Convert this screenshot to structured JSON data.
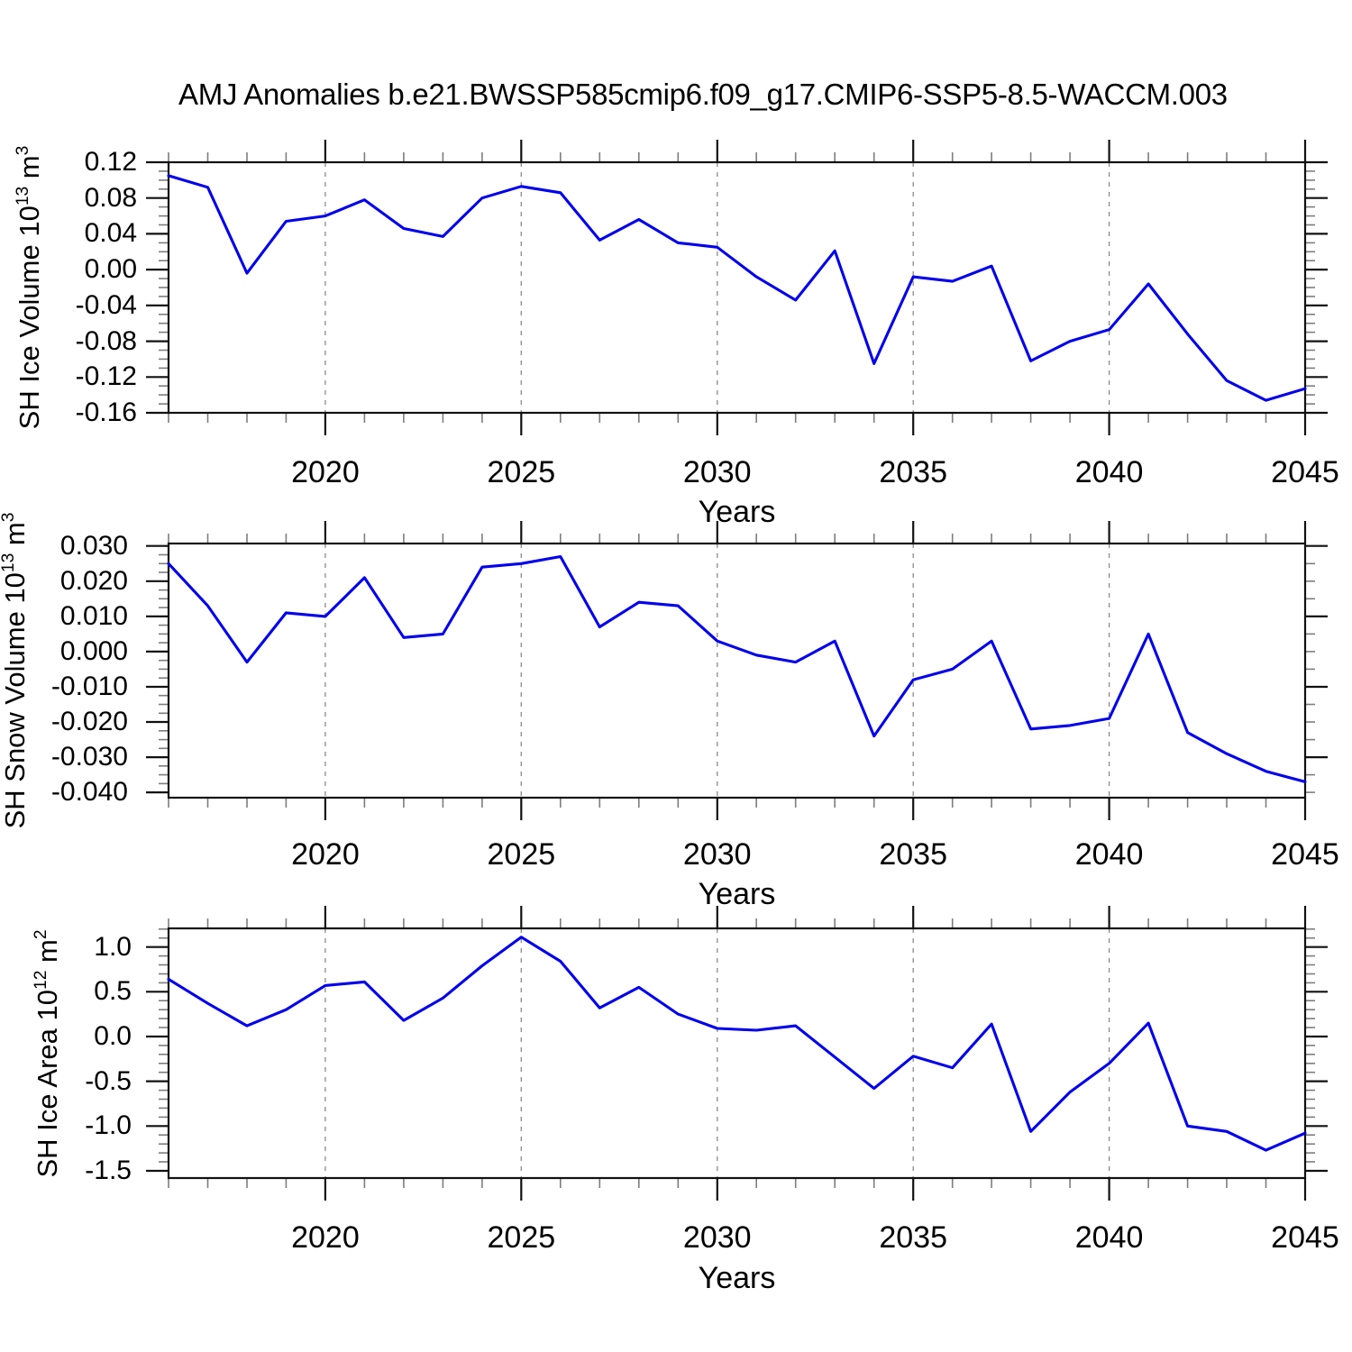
{
  "title": "AMJ Anomalies b.e21.BWSSP585cmip6.f09_g17.CMIP6-SSP5-8.5-WACCM.003",
  "colors": {
    "line": "#0000EE",
    "grid": "#8a8a8a",
    "frame": "#111111",
    "tick_major": "#111111",
    "tick_minor": "#7d7d7d"
  },
  "chart_data": [
    {
      "type": "line",
      "name": "sh-ice-volume",
      "ylabel_parts": [
        "SH Ice Volume 10",
        "13",
        " m",
        "3"
      ],
      "xlabel": "Years",
      "xlim": [
        2016,
        2045
      ],
      "xticks_major": [
        2020,
        2025,
        2030,
        2035,
        2040,
        2045
      ],
      "grid_years": [
        2020,
        2025,
        2030,
        2035,
        2040
      ],
      "ylim": [
        -0.16,
        0.12
      ],
      "ytick_values": [
        0.12,
        0.08,
        0.04,
        0.0,
        -0.04,
        -0.08,
        -0.12,
        -0.16
      ],
      "ytick_labels": [
        "0.12",
        "0.08",
        "0.04",
        "0.00",
        "-0.04",
        "-0.08",
        "-0.12",
        "-0.16"
      ],
      "ytick_minor_step": 0.01,
      "x": [
        2016,
        2017,
        2018,
        2019,
        2020,
        2021,
        2022,
        2023,
        2024,
        2025,
        2026,
        2027,
        2028,
        2029,
        2030,
        2031,
        2032,
        2033,
        2034,
        2035,
        2036,
        2037,
        2038,
        2039,
        2040,
        2041,
        2042,
        2043,
        2044,
        2045
      ],
      "values": [
        0.105,
        0.092,
        -0.004,
        0.054,
        0.06,
        0.078,
        0.046,
        0.037,
        0.08,
        0.093,
        0.086,
        0.033,
        0.056,
        0.03,
        0.025,
        -0.008,
        -0.034,
        0.021,
        -0.105,
        -0.008,
        -0.013,
        0.004,
        -0.102,
        -0.08,
        -0.067,
        -0.016,
        -0.072,
        -0.124,
        -0.146,
        -0.133
      ]
    },
    {
      "type": "line",
      "name": "sh-snow-volume",
      "ylabel_parts": [
        "SH Snow Volume 10",
        "13",
        " m",
        "3"
      ],
      "xlabel": "Years",
      "xlim": [
        2016,
        2045
      ],
      "xticks_major": [
        2020,
        2025,
        2030,
        2035,
        2040,
        2045
      ],
      "grid_years": [
        2020,
        2025,
        2030,
        2035,
        2040
      ],
      "ylim": [
        -0.0415,
        0.0307
      ],
      "ytick_values": [
        0.03,
        0.02,
        0.01,
        0.0,
        -0.01,
        -0.02,
        -0.03,
        -0.04
      ],
      "ytick_labels": [
        "0.030",
        "0.020",
        "0.010",
        "0.000",
        "-0.010",
        "-0.020",
        "-0.030",
        "-0.040"
      ],
      "ytick_minor_step": 0.0025,
      "yticks_right_values": [
        0.03,
        0.01,
        -0.01,
        -0.03
      ],
      "ytick_right_minor_step": 0.005,
      "x": [
        2016,
        2017,
        2018,
        2019,
        2020,
        2021,
        2022,
        2023,
        2024,
        2025,
        2026,
        2027,
        2028,
        2029,
        2030,
        2031,
        2032,
        2033,
        2034,
        2035,
        2036,
        2037,
        2038,
        2039,
        2040,
        2041,
        2042,
        2043,
        2044,
        2045
      ],
      "values": [
        0.025,
        0.013,
        -0.003,
        0.011,
        0.01,
        0.021,
        0.004,
        0.005,
        0.024,
        0.025,
        0.027,
        0.007,
        0.014,
        0.013,
        0.003,
        -0.001,
        -0.003,
        0.003,
        -0.024,
        -0.008,
        -0.005,
        0.003,
        -0.022,
        -0.021,
        -0.019,
        0.005,
        -0.023,
        -0.029,
        -0.034,
        -0.037
      ]
    },
    {
      "type": "line",
      "name": "sh-ice-area",
      "ylabel_parts": [
        "SH Ice Area 10",
        "12",
        " m",
        "2"
      ],
      "xlabel": "Years",
      "xlim": [
        2016,
        2045
      ],
      "xticks_major": [
        2020,
        2025,
        2030,
        2035,
        2040,
        2045
      ],
      "grid_years": [
        2020,
        2025,
        2030,
        2035,
        2040
      ],
      "ylim": [
        -1.581,
        1.208
      ],
      "ytick_values": [
        1.0,
        0.5,
        0.0,
        -0.5,
        -1.0,
        -1.5
      ],
      "ytick_labels": [
        "1.0",
        "0.5",
        "0.0",
        "-0.5",
        "-1.0",
        "-1.5"
      ],
      "ytick_minor_step": 0.1,
      "x": [
        2016,
        2017,
        2018,
        2019,
        2020,
        2021,
        2022,
        2023,
        2024,
        2025,
        2026,
        2027,
        2028,
        2029,
        2030,
        2031,
        2032,
        2033,
        2034,
        2035,
        2036,
        2037,
        2038,
        2039,
        2040,
        2041,
        2042,
        2043,
        2044,
        2045
      ],
      "values": [
        0.64,
        0.37,
        0.12,
        0.3,
        0.57,
        0.61,
        0.18,
        0.43,
        0.79,
        1.11,
        0.84,
        0.32,
        0.55,
        0.25,
        0.09,
        0.07,
        0.12,
        -0.23,
        -0.58,
        -0.22,
        -0.35,
        0.14,
        -1.06,
        -0.62,
        -0.3,
        0.15,
        -1.0,
        -1.06,
        -1.27,
        -1.08
      ]
    }
  ]
}
